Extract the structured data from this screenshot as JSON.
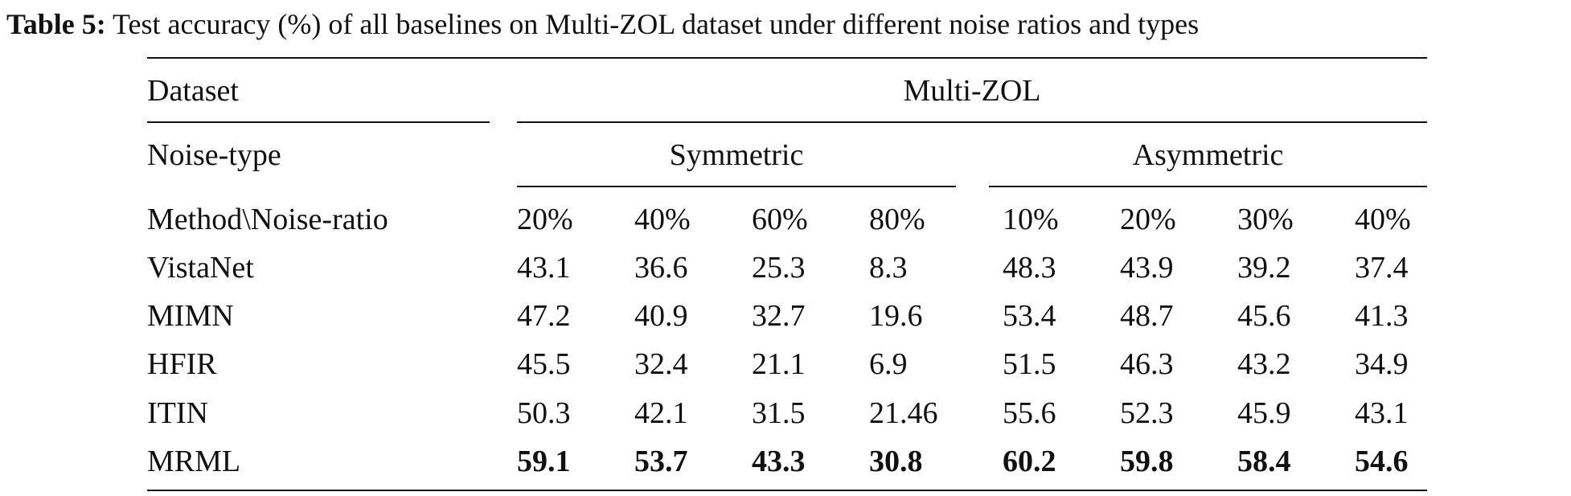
{
  "caption": {
    "label": "Table 5:",
    "text": " Test accuracy (%) of all baselines on Multi-ZOL dataset under different noise ratios and types"
  },
  "header": {
    "dataset_label": "Dataset",
    "dataset_value": "Multi-ZOL",
    "noise_type_label": "Noise-type",
    "symmetric": "Symmetric",
    "asymmetric": "Asymmetric",
    "method_label": "Method\\Noise-ratio",
    "ratios": [
      "20%",
      "40%",
      "60%",
      "80%",
      "10%",
      "20%",
      "30%",
      "40%"
    ]
  },
  "rows": [
    {
      "method": "VistaNet",
      "values": [
        "43.1",
        "36.6",
        "25.3",
        "8.3",
        "48.3",
        "43.9",
        "39.2",
        "37.4"
      ]
    },
    {
      "method": "MIMN",
      "values": [
        "47.2",
        "40.9",
        "32.7",
        "19.6",
        "53.4",
        "48.7",
        "45.6",
        "41.3"
      ]
    },
    {
      "method": "HFIR",
      "values": [
        "45.5",
        "32.4",
        "21.1",
        "6.9",
        "51.5",
        "46.3",
        "43.2",
        "34.9"
      ]
    },
    {
      "method": "ITIN",
      "values": [
        "50.3",
        "42.1",
        "31.5",
        "21.46",
        "55.6",
        "52.3",
        "45.9",
        "43.1"
      ]
    },
    {
      "method": "MRML",
      "values": [
        "59.1",
        "53.7",
        "43.3",
        "30.8",
        "60.2",
        "59.8",
        "58.4",
        "54.6"
      ],
      "bold": true
    }
  ]
}
